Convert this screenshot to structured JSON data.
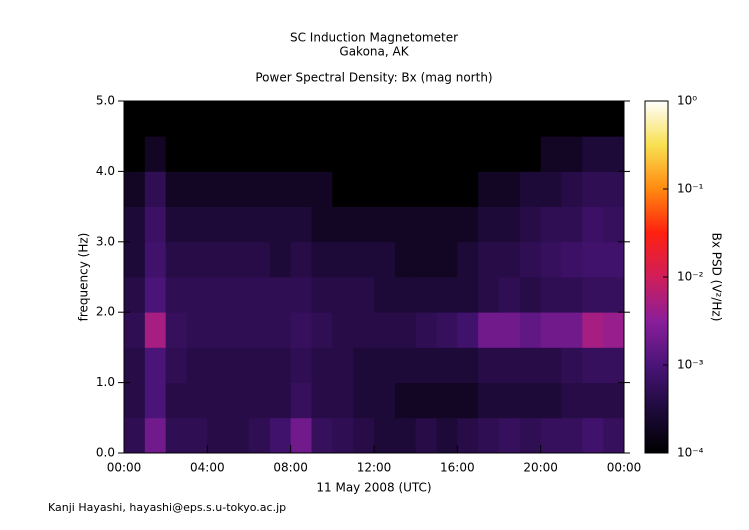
{
  "chart_data": {
    "type": "spectrogram",
    "title": "SC Induction Magnetometer",
    "subtitle": "Gakona, AK",
    "plot_title": "Power Spectral Density: Bx (mag north)",
    "x_label": "11 May 2008 (UTC)",
    "y_label": "frequency (Hz)",
    "colorbar_label": "Bx PSD (V²/Hz)",
    "footer": "Kanji Hayashi, hayashi@eps.s.u-tokyo.ac.jp",
    "xlim": [
      0,
      24
    ],
    "xticks": [
      {
        "value": 0,
        "label": "00:00"
      },
      {
        "value": 4,
        "label": "04:00"
      },
      {
        "value": 8,
        "label": "08:00"
      },
      {
        "value": 12,
        "label": "12:00"
      },
      {
        "value": 16,
        "label": "16:00"
      },
      {
        "value": 20,
        "label": "20:00"
      },
      {
        "value": 24,
        "label": "00:00"
      }
    ],
    "ylim": [
      0,
      5
    ],
    "yticks": [
      {
        "value": 0,
        "label": "0.0"
      },
      {
        "value": 1,
        "label": "1.0"
      },
      {
        "value": 2,
        "label": "2.0"
      },
      {
        "value": 3,
        "label": "3.0"
      },
      {
        "value": 4,
        "label": "4.0"
      },
      {
        "value": 5,
        "label": "5.0"
      }
    ],
    "zlim": [
      0.0001,
      1
    ],
    "zscale": "log",
    "zticks": [
      {
        "value": 0.0001,
        "label": "10⁻⁴"
      },
      {
        "value": 0.001,
        "label": "10⁻³"
      },
      {
        "value": 0.01,
        "label": "10⁻²"
      },
      {
        "value": 0.1,
        "label": "10⁻¹"
      },
      {
        "value": 1,
        "label": "10⁰"
      }
    ],
    "colormap": [
      "#000000",
      "#1e0a3c",
      "#4a1478",
      "#8a1e9a",
      "#d01e5a",
      "#ff2010",
      "#ff8a10",
      "#f8e050",
      "#ffffff"
    ],
    "time_bins": [
      0,
      1,
      2,
      3,
      4,
      5,
      6,
      7,
      8,
      9,
      10,
      11,
      12,
      13,
      14,
      15,
      16,
      17,
      18,
      19,
      20,
      21,
      22,
      23,
      24
    ],
    "freq_bins": [
      0,
      0.5,
      1,
      1.5,
      2,
      2.5,
      3,
      3.5,
      4,
      4.5,
      5
    ],
    "z": [
      [
        0.0005,
        0.002,
        0.0005,
        0.0005,
        0.0004,
        0.0004,
        0.0005,
        0.0008,
        0.002,
        0.0006,
        0.0005,
        0.0004,
        0.0003,
        0.0003,
        0.0004,
        0.0003,
        0.0004,
        0.0005,
        0.0006,
        0.0005,
        0.0006,
        0.0006,
        0.0008,
        0.0006
      ],
      [
        0.0004,
        0.001,
        0.0004,
        0.0004,
        0.0004,
        0.0004,
        0.0004,
        0.0004,
        0.0006,
        0.0004,
        0.0004,
        0.0003,
        0.0003,
        0.0002,
        0.0002,
        0.0002,
        0.0002,
        0.0003,
        0.0003,
        0.0003,
        0.0003,
        0.0004,
        0.0004,
        0.0004
      ],
      [
        0.0004,
        0.001,
        0.0005,
        0.0004,
        0.0004,
        0.0004,
        0.0004,
        0.0004,
        0.0005,
        0.0004,
        0.0004,
        0.0003,
        0.0003,
        0.0003,
        0.0003,
        0.0003,
        0.0003,
        0.0004,
        0.0004,
        0.0004,
        0.0004,
        0.0005,
        0.0006,
        0.0006
      ],
      [
        0.0005,
        0.005,
        0.0006,
        0.0005,
        0.0005,
        0.0005,
        0.0005,
        0.0005,
        0.0006,
        0.0005,
        0.0004,
        0.0004,
        0.0004,
        0.0004,
        0.0005,
        0.0006,
        0.0008,
        0.002,
        0.002,
        0.0015,
        0.002,
        0.002,
        0.005,
        0.004
      ],
      [
        0.0004,
        0.001,
        0.0005,
        0.0005,
        0.0005,
        0.0005,
        0.0005,
        0.0005,
        0.0005,
        0.0004,
        0.0004,
        0.0004,
        0.0003,
        0.0003,
        0.0003,
        0.0003,
        0.0003,
        0.0004,
        0.0005,
        0.0004,
        0.0005,
        0.0005,
        0.0006,
        0.0006
      ],
      [
        0.0003,
        0.0008,
        0.0004,
        0.0004,
        0.0004,
        0.0004,
        0.0004,
        0.0003,
        0.0004,
        0.0003,
        0.0003,
        0.0003,
        0.0003,
        0.0002,
        0.0002,
        0.0002,
        0.0003,
        0.0004,
        0.0004,
        0.0005,
        0.0006,
        0.0007,
        0.0008,
        0.0008
      ],
      [
        0.0003,
        0.0007,
        0.0003,
        0.0003,
        0.0003,
        0.0003,
        0.0003,
        0.0003,
        0.0003,
        0.0002,
        0.0002,
        0.0002,
        0.0002,
        0.0002,
        0.0002,
        0.0002,
        0.0002,
        0.0003,
        0.0003,
        0.0004,
        0.0005,
        0.0005,
        0.0007,
        0.0006
      ],
      [
        0.0002,
        0.0005,
        0.0002,
        0.0002,
        0.0002,
        0.0002,
        0.0002,
        0.0002,
        0.0002,
        0.0002,
        0.0001,
        0.0001,
        0.0001,
        0.0001,
        0.0001,
        0.0001,
        0.0001,
        0.0002,
        0.0002,
        0.0003,
        0.0003,
        0.0004,
        0.0005,
        0.0005
      ],
      [
        0.0001,
        0.0002,
        0.0001,
        0.0001,
        0.0001,
        0.0001,
        0.0001,
        0.0001,
        0.0001,
        0.0001,
        0.0001,
        0.0001,
        0.0001,
        0.0001,
        0.0001,
        0.0001,
        0.0001,
        0.0001,
        0.0001,
        0.0001,
        0.0002,
        0.0002,
        0.0003,
        0.0003
      ],
      [
        0.0001,
        0.0001,
        0.0001,
        0.0001,
        0.0001,
        0.0001,
        0.0001,
        0.0001,
        0.0001,
        0.0001,
        0.0001,
        0.0001,
        0.0001,
        0.0001,
        0.0001,
        0.0001,
        0.0001,
        0.0001,
        0.0001,
        0.0001,
        0.0001,
        0.0001,
        0.0001,
        0.0001
      ]
    ]
  }
}
